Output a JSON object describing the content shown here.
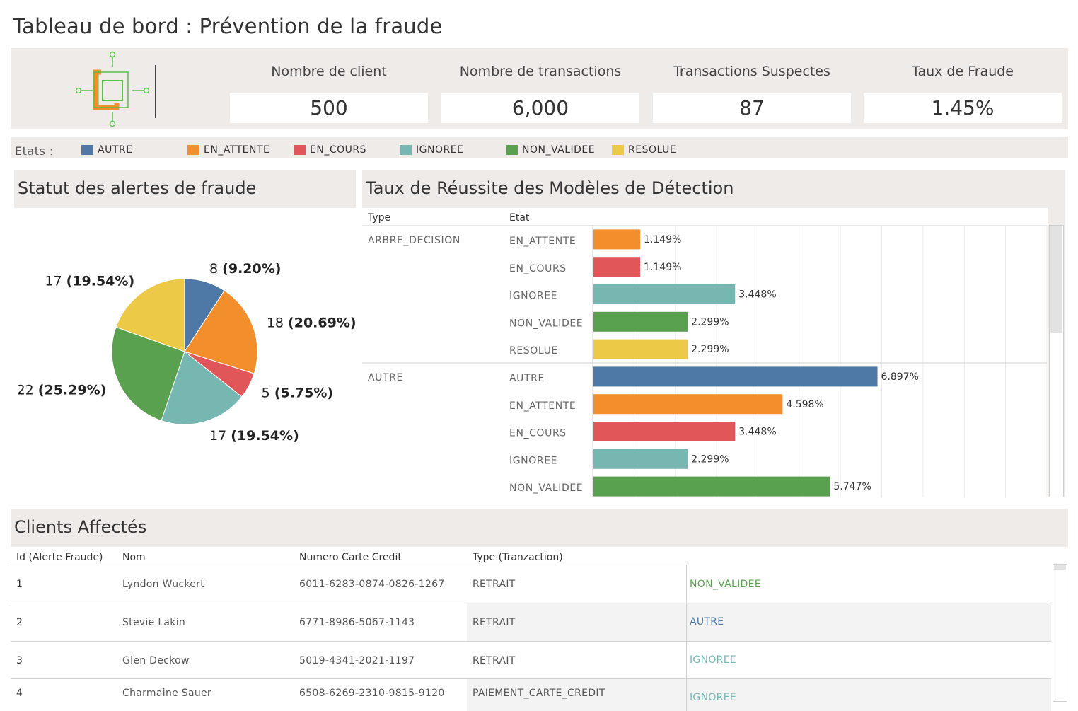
{
  "title": "Tableau de bord : Prévention de la fraude",
  "kpis": [
    {
      "label": "Nombre de client",
      "value": "500"
    },
    {
      "label": "Nombre de transactions",
      "value": "6,000"
    },
    {
      "label": "Transactions Suspectes",
      "value": "87"
    },
    {
      "label": "Taux de Fraude",
      "value": "1.45%"
    }
  ],
  "legend": {
    "title": "Etats :",
    "items": [
      {
        "label": "AUTRE",
        "color": "#4e79a7"
      },
      {
        "label": "EN_ATTENTE",
        "color": "#f28e2b"
      },
      {
        "label": "EN_COURS",
        "color": "#e15759"
      },
      {
        "label": "IGNOREE",
        "color": "#76b7b2"
      },
      {
        "label": "NON_VALIDEE",
        "color": "#59a14f"
      },
      {
        "label": "RESOLUE",
        "color": "#edc948"
      }
    ]
  },
  "pie_panel": {
    "title": "Statut des alertes de fraude"
  },
  "bar_panel": {
    "title": "Taux de Réussite des Modèles de Détection",
    "col_type": "Type",
    "col_etat": "Etat"
  },
  "table_panel": {
    "title": "Clients Affectés",
    "headers": [
      "Id (Alerte Fraude)",
      "Nom",
      "Numero Carte Credit",
      "Type (Tranzaction)"
    ],
    "rows": [
      {
        "id": "1",
        "nom": "Lyndon Wuckert",
        "carte": "6011-6283-0874-0826-1267",
        "type": "RETRAIT",
        "etat": "NON_VALIDEE",
        "etat_color": "#59a14f"
      },
      {
        "id": "2",
        "nom": "Stevie Lakin",
        "carte": "6771-8986-5067-1143",
        "type": "RETRAIT",
        "etat": "AUTRE",
        "etat_color": "#4e79a7"
      },
      {
        "id": "3",
        "nom": "Glen Deckow",
        "carte": "5019-4341-2021-1197",
        "type": "RETRAIT",
        "etat": "IGNOREE",
        "etat_color": "#76b7b2"
      },
      {
        "id": "4",
        "nom": "Charmaine Sauer",
        "carte": "6508-6269-2310-9815-9120",
        "type": "PAIEMENT_CARTE_CREDIT",
        "etat": "IGNOREE",
        "etat_color": "#76b7b2"
      }
    ]
  },
  "chart_data": [
    {
      "type": "pie",
      "title": "Statut des alertes de fraude",
      "slices": [
        {
          "name": "AUTRE",
          "value": 8,
          "label_count": "8",
          "label_pct": "(9.20%)",
          "color": "#4e79a7"
        },
        {
          "name": "EN_ATTENTE",
          "value": 18,
          "label_count": "18",
          "label_pct": "(20.69%)",
          "color": "#f28e2b"
        },
        {
          "name": "EN_COURS",
          "value": 5,
          "label_count": "5",
          "label_pct": "(5.75%)",
          "color": "#e15759"
        },
        {
          "name": "IGNOREE",
          "value": 17,
          "label_count": "17",
          "label_pct": "(19.54%)",
          "color": "#76b7b2"
        },
        {
          "name": "NON_VALIDEE",
          "value": 22,
          "label_count": "22",
          "label_pct": "(25.29%)",
          "color": "#59a14f"
        },
        {
          "name": "RESOLUE",
          "value": 17,
          "label_count": "17",
          "label_pct": "(19.54%)",
          "color": "#edc948"
        }
      ]
    },
    {
      "type": "bar",
      "title": "Taux de Réussite des Modèles de Détection",
      "orientation": "horizontal",
      "xlim": [
        0,
        11
      ],
      "groups": [
        {
          "type": "ARBRE_DECISION",
          "bars": [
            {
              "etat": "EN_ATTENTE",
              "value": 1.149,
              "label": "1.149%",
              "color": "#f28e2b"
            },
            {
              "etat": "EN_COURS",
              "value": 1.149,
              "label": "1.149%",
              "color": "#e15759"
            },
            {
              "etat": "IGNOREE",
              "value": 3.448,
              "label": "3.448%",
              "color": "#76b7b2"
            },
            {
              "etat": "NON_VALIDEE",
              "value": 2.299,
              "label": "2.299%",
              "color": "#59a14f"
            },
            {
              "etat": "RESOLUE",
              "value": 2.299,
              "label": "2.299%",
              "color": "#edc948"
            }
          ]
        },
        {
          "type": "AUTRE",
          "bars": [
            {
              "etat": "AUTRE",
              "value": 6.897,
              "label": "6.897%",
              "color": "#4e79a7"
            },
            {
              "etat": "EN_ATTENTE",
              "value": 4.598,
              "label": "4.598%",
              "color": "#f28e2b"
            },
            {
              "etat": "EN_COURS",
              "value": 3.448,
              "label": "3.448%",
              "color": "#e15759"
            },
            {
              "etat": "IGNOREE",
              "value": 2.299,
              "label": "2.299%",
              "color": "#76b7b2"
            },
            {
              "etat": "NON_VALIDEE",
              "value": 5.747,
              "label": "5.747%",
              "color": "#59a14f"
            }
          ]
        }
      ]
    }
  ]
}
